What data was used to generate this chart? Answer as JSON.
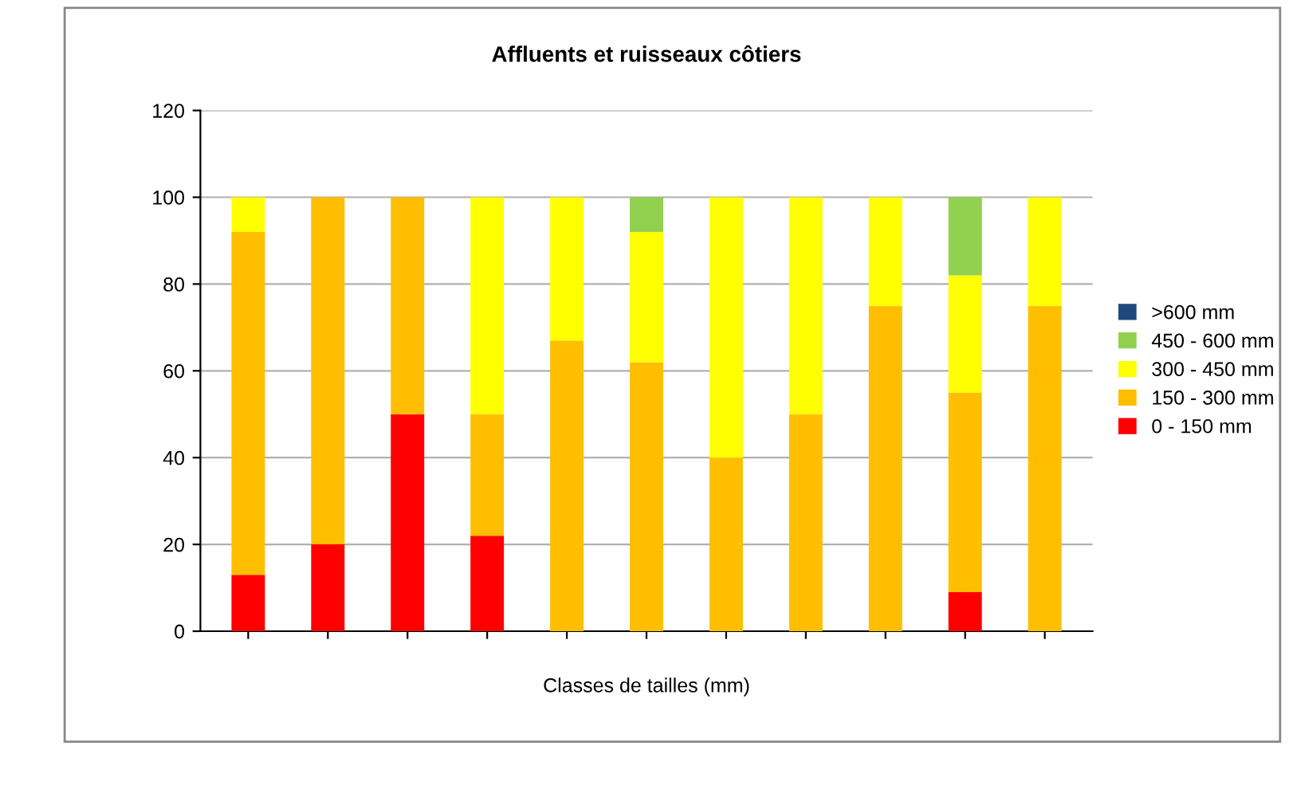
{
  "chart_data": {
    "type": "bar",
    "title": "Affluents et ruisseaux côtiers",
    "xlabel": "Classes de tailles (mm)",
    "categories": [
      null,
      null,
      null,
      null,
      null,
      null,
      null,
      null,
      null,
      null,
      null
    ],
    "stacked": true,
    "ylim": [
      0,
      120
    ],
    "yticks": [
      0,
      20,
      40,
      60,
      80,
      100,
      120
    ],
    "grid": "y",
    "legend": "right",
    "series": [
      {
        "name": "0 - 150 mm",
        "color": "#ff0000",
        "values": [
          13,
          20,
          50,
          22,
          0,
          0,
          0,
          0,
          0,
          9,
          0
        ]
      },
      {
        "name": "150 - 300 mm",
        "color": "#ffbf00",
        "values": [
          79,
          80,
          50,
          28,
          67,
          62,
          40,
          50,
          75,
          46,
          75
        ]
      },
      {
        "name": "300 - 450 mm",
        "color": "#ffff00",
        "values": [
          8,
          0,
          0,
          50,
          33,
          30,
          60,
          50,
          25,
          27,
          25
        ]
      },
      {
        "name": "450 - 600 mm",
        "color": "#92d050",
        "values": [
          0,
          0,
          0,
          0,
          0,
          8,
          0,
          0,
          0,
          18,
          0
        ]
      },
      {
        "name": ">600 mm",
        "color": "#1f497d",
        "values": [
          0,
          0,
          0,
          0,
          0,
          0,
          0,
          0,
          0,
          0,
          0
        ]
      }
    ]
  }
}
